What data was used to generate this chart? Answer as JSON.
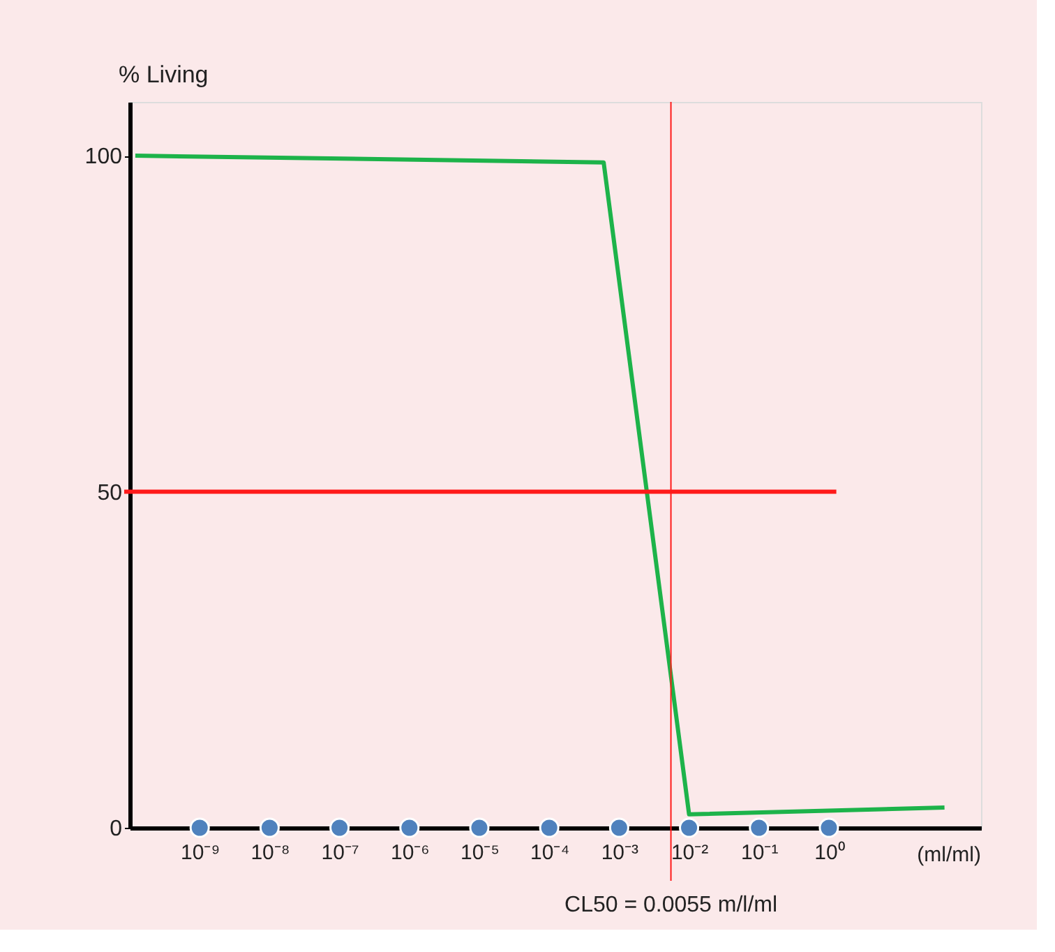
{
  "chart_data": {
    "type": "line",
    "xlabel": "(ml/ml)",
    "ylabel": "% Living",
    "log": "x",
    "xlim": [
      1e-10,
      150
    ],
    "ylim": [
      0,
      108
    ],
    "xticks": [
      {
        "value": 1e-09,
        "label": "10⁻⁹"
      },
      {
        "value": 1e-08,
        "label": "10⁻⁸"
      },
      {
        "value": 1e-07,
        "label": "10⁻⁷"
      },
      {
        "value": 1e-06,
        "label": "10⁻⁶"
      },
      {
        "value": 1e-05,
        "label": "10⁻⁵"
      },
      {
        "value": 0.0001,
        "label": "10⁻⁴"
      },
      {
        "value": 0.001,
        "label": "10⁻³"
      },
      {
        "value": 0.01,
        "label": "10⁻²"
      },
      {
        "value": 0.1,
        "label": "10⁻¹"
      },
      {
        "value": 1,
        "label": "10⁰"
      }
    ],
    "yticks": [
      0,
      50,
      100
    ],
    "series": [
      {
        "color": "#1db34a",
        "x": [
          1.2e-10,
          0.0006,
          0.01,
          45
        ],
        "values": [
          100,
          99,
          2,
          3
        ]
      },
      {
        "type": "scatter",
        "marker": "circle",
        "color": "#4f81bd",
        "x": [
          1e-09,
          1e-08,
          1e-07,
          1e-06,
          1e-05,
          0.0001,
          0.001,
          0.01,
          0.1,
          1
        ],
        "values": [
          0,
          0,
          0,
          0,
          0,
          0,
          0,
          0,
          0,
          0
        ]
      }
    ],
    "ref_lines": [
      {
        "axis": "y",
        "value": 50,
        "color": "#ff1a1a"
      },
      {
        "axis": "x",
        "value": 0.0055,
        "color": "#ff1a1a",
        "label": "CL50 = 0.0055 m/l/ml"
      }
    ],
    "grid": false
  }
}
